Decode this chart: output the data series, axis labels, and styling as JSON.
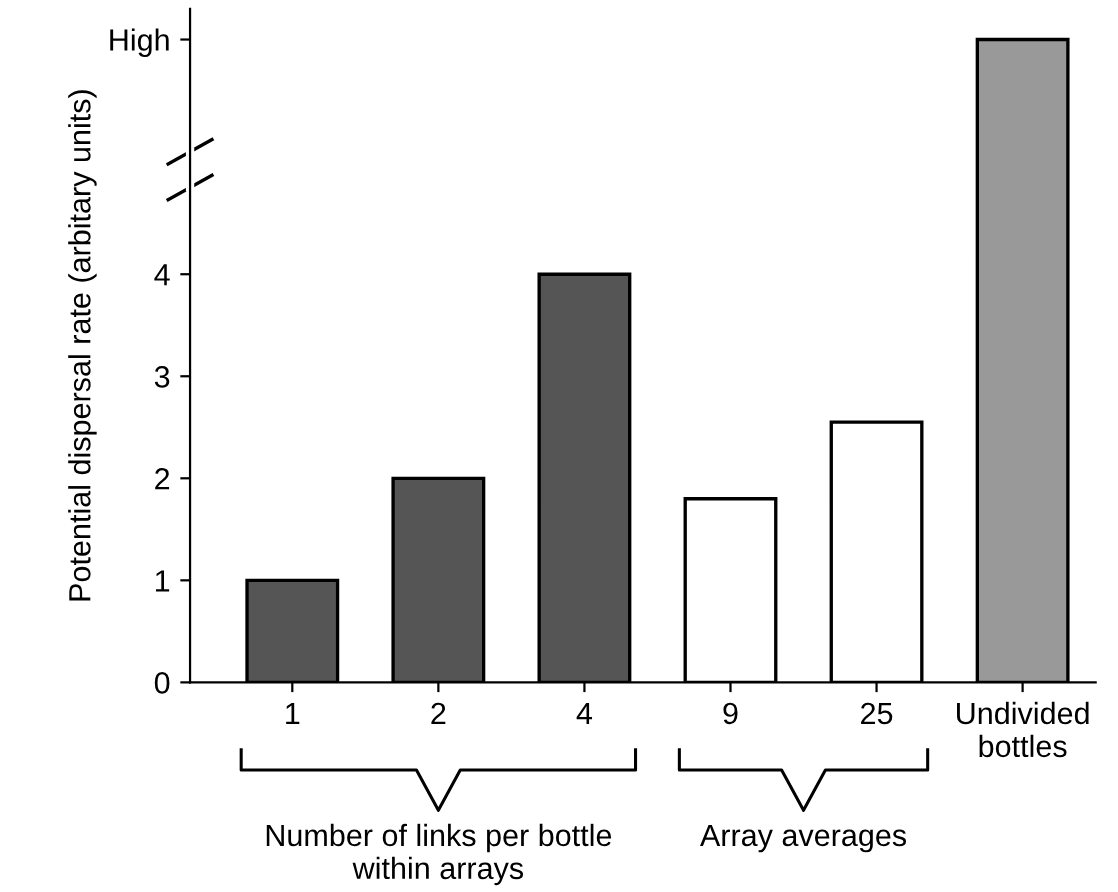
{
  "chart_data": {
    "type": "bar",
    "ylabel": "Potential dispersal rate (arbitary units)",
    "categories": [
      "1",
      "2",
      "4",
      "9",
      "25",
      "Undivided\nbottles"
    ],
    "values": [
      1,
      2,
      4,
      1.8,
      2.55,
      6.3
    ],
    "colors": [
      "#555555",
      "#555555",
      "#555555",
      "#ffffff",
      "#ffffff",
      "#999999"
    ],
    "ylim": [
      0,
      6.6
    ],
    "yticks": [
      0,
      1,
      2,
      3,
      4,
      {
        "value": 6.3,
        "label": "High"
      }
    ],
    "annotations": [
      "Number of links per bottle\nwithin arrays",
      "Array averages"
    ]
  }
}
